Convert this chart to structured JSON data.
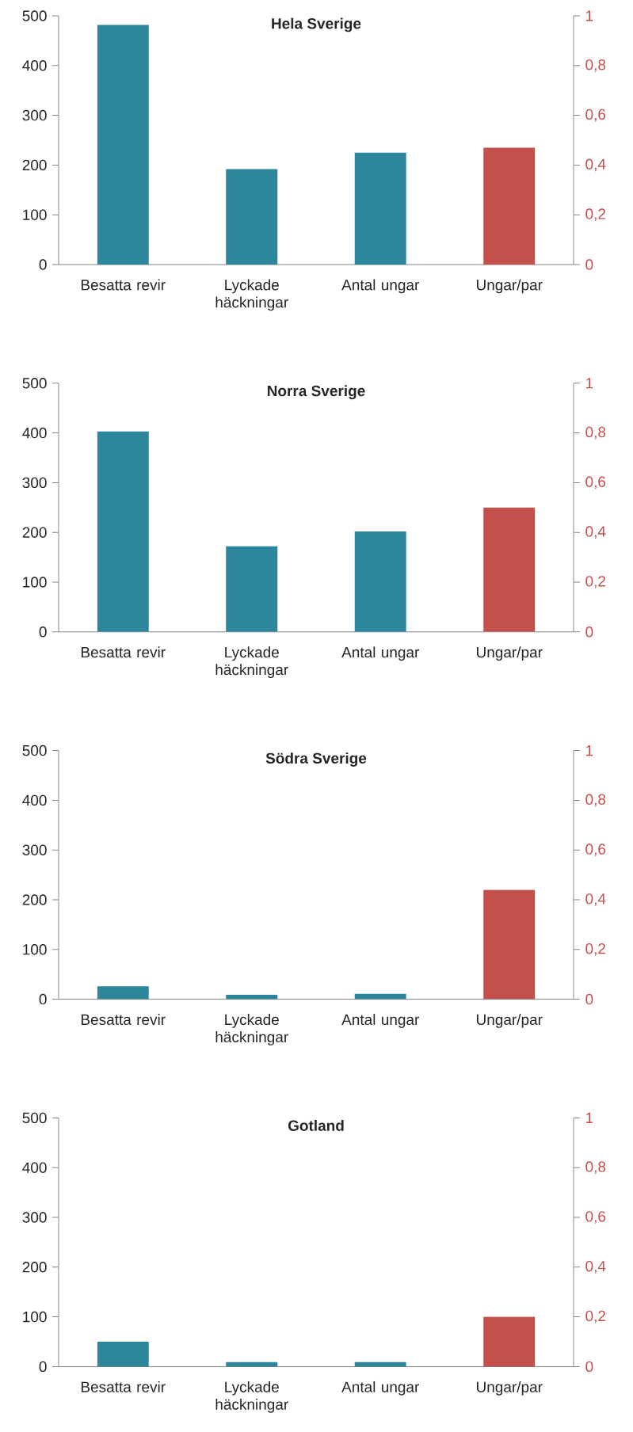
{
  "chart_data": [
    {
      "type": "bar",
      "title": "Hela Sverige",
      "categories": [
        "Besatta revir",
        "Lyckade häckningar",
        "Antal ungar",
        "Ungar/par"
      ],
      "series": [
        {
          "color": "#2c879d",
          "values": [
            482,
            192,
            225,
            null
          ]
        },
        {
          "color": "#c4504c",
          "axis": "y2",
          "values": [
            null,
            null,
            null,
            0.47
          ]
        }
      ],
      "ylim": [
        0,
        500
      ],
      "yticks": [
        0,
        100,
        200,
        300,
        400,
        500
      ],
      "y2lim": [
        0,
        1
      ],
      "y2ticks": [
        0,
        {
          "value": 0.2,
          "label": "0,2"
        },
        {
          "value": 0.4,
          "label": "0,4"
        },
        {
          "value": 0.6,
          "label": "0,6"
        },
        {
          "value": 0.8,
          "label": "0,8"
        },
        1
      ]
    },
    {
      "type": "bar",
      "title": "Norra Sverige",
      "categories": [
        "Besatta revir",
        "Lyckade häckningar",
        "Antal ungar",
        "Ungar/par"
      ],
      "series": [
        {
          "color": "#2c879d",
          "values": [
            403,
            172,
            202,
            null
          ]
        },
        {
          "color": "#c4504c",
          "axis": "y2",
          "values": [
            null,
            null,
            null,
            0.5
          ]
        }
      ],
      "ylim": [
        0,
        500
      ],
      "yticks": [
        0,
        100,
        200,
        300,
        400,
        500
      ],
      "y2lim": [
        0,
        1
      ],
      "y2ticks": [
        0,
        {
          "value": 0.2,
          "label": "0,2"
        },
        {
          "value": 0.4,
          "label": "0,4"
        },
        {
          "value": 0.6,
          "label": "0,6"
        },
        {
          "value": 0.8,
          "label": "0,8"
        },
        1
      ]
    },
    {
      "type": "bar",
      "title": "Södra Sverige",
      "categories": [
        "Besatta revir",
        "Lyckade häckningar",
        "Antal ungar",
        "Ungar/par"
      ],
      "series": [
        {
          "color": "#2c879d",
          "values": [
            26,
            9,
            11,
            null
          ]
        },
        {
          "color": "#c4504c",
          "axis": "y2",
          "values": [
            null,
            null,
            null,
            0.44
          ]
        }
      ],
      "ylim": [
        0,
        500
      ],
      "yticks": [
        0,
        100,
        200,
        300,
        400,
        500
      ],
      "y2lim": [
        0,
        1
      ],
      "y2ticks": [
        0,
        {
          "value": 0.2,
          "label": "0,2"
        },
        {
          "value": 0.4,
          "label": "0,4"
        },
        {
          "value": 0.6,
          "label": "0,6"
        },
        {
          "value": 0.8,
          "label": "0,8"
        },
        1
      ]
    },
    {
      "type": "bar",
      "title": "Gotland",
      "categories": [
        "Besatta revir",
        "Lyckade häckningar",
        "Antal ungar",
        "Ungar/par"
      ],
      "series": [
        {
          "color": "#2c879d",
          "values": [
            50,
            9,
            9,
            null
          ]
        },
        {
          "color": "#c4504c",
          "axis": "y2",
          "values": [
            null,
            null,
            null,
            0.2
          ]
        }
      ],
      "ylim": [
        0,
        500
      ],
      "yticks": [
        0,
        100,
        200,
        300,
        400,
        500
      ],
      "y2lim": [
        0,
        1
      ],
      "y2ticks": [
        0,
        {
          "value": 0.2,
          "label": "0,2"
        },
        {
          "value": 0.4,
          "label": "0,4"
        },
        {
          "value": 0.6,
          "label": "0,6"
        },
        {
          "value": 0.8,
          "label": "0,8"
        },
        1
      ]
    }
  ]
}
